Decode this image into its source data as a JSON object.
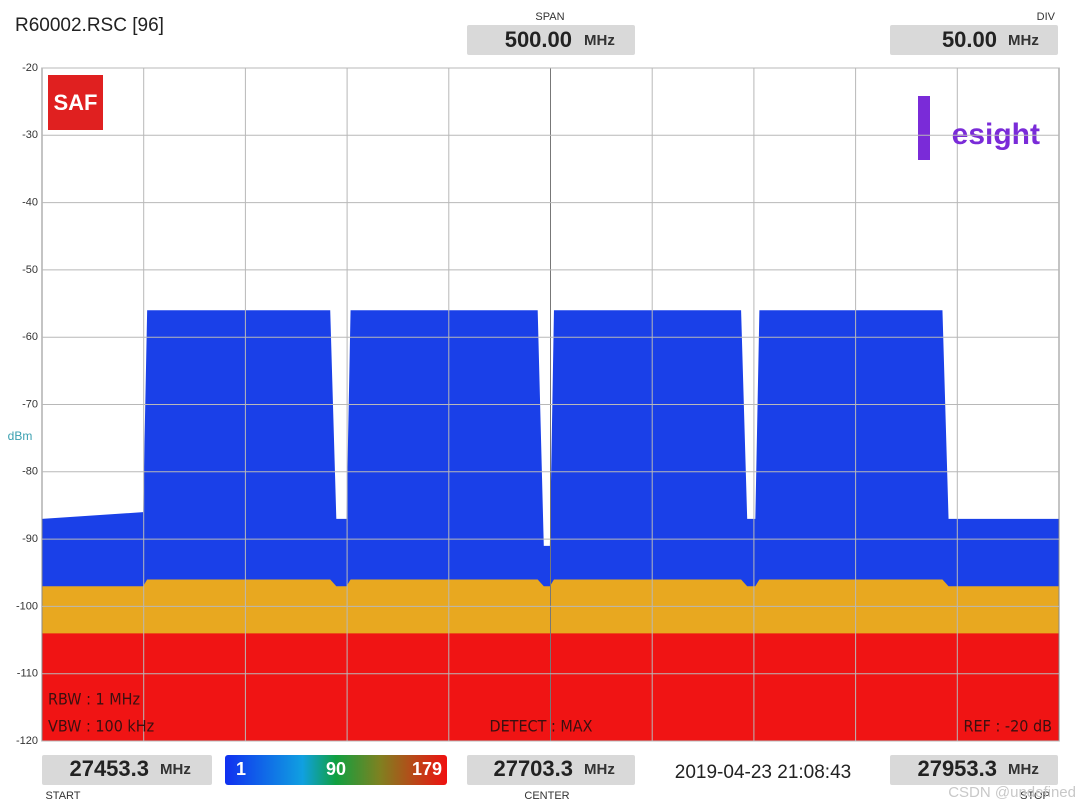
{
  "header": {
    "file": "R60002.RSC [96]",
    "span": {
      "label": "SPAN",
      "value": "500.00",
      "unit": "MHz"
    },
    "div": {
      "label": "DIV",
      "value": "50.00",
      "unit": "MHz"
    }
  },
  "logos": {
    "saf": "SAF",
    "resight": "esight"
  },
  "settings": {
    "rbw": "RBW : 1 MHz",
    "vbw": "VBW : 100 kHz",
    "detect": "DETECT : MAX",
    "ref": "REF : -20 dB"
  },
  "chart_data": {
    "type": "spectrum",
    "y_label": "dBm",
    "xlim": [
      27453.3,
      27953.3
    ],
    "center": 27703.3,
    "ylim": [
      -120,
      -20
    ],
    "yticks": [
      -20,
      -30,
      -40,
      -50,
      -60,
      -70,
      -80,
      -90,
      -100,
      -110,
      -120
    ],
    "grid": true,
    "x": [
      27453.3,
      27503,
      27505,
      27595,
      27598,
      27603,
      27605,
      27697,
      27700,
      27703,
      27705,
      27797,
      27800,
      27804,
      27806,
      27896,
      27899,
      27953.3
    ],
    "layers": [
      {
        "color": "#1a40e8",
        "values": [
          -87,
          -86,
          -56,
          -56,
          -87,
          -87,
          -56,
          -56,
          -91,
          -91,
          -56,
          -56,
          -87,
          -87,
          -56,
          -56,
          -87,
          -87
        ]
      },
      {
        "color": "#e8a820",
        "values": [
          -97,
          -97,
          -96,
          -96,
          -97,
          -97,
          -96,
          -96,
          -97,
          -97,
          -96,
          -96,
          -97,
          -97,
          -96,
          -96,
          -97,
          -97
        ]
      },
      {
        "color": "#f01414",
        "values": [
          -104,
          -104,
          -104,
          -104,
          -104,
          -104,
          -104,
          -104,
          -104,
          -104,
          -104,
          -104,
          -104,
          -104,
          -104,
          -104,
          -104,
          -104
        ]
      }
    ]
  },
  "footer": {
    "unit": "MHz",
    "start_label": "START",
    "center_label": "CENTER",
    "stop_label": "STOP",
    "colorbar": [
      "1",
      "90",
      "179"
    ],
    "timestamp": "2019-04-23 21:08:43"
  },
  "watermark": "CSDN @undefined"
}
